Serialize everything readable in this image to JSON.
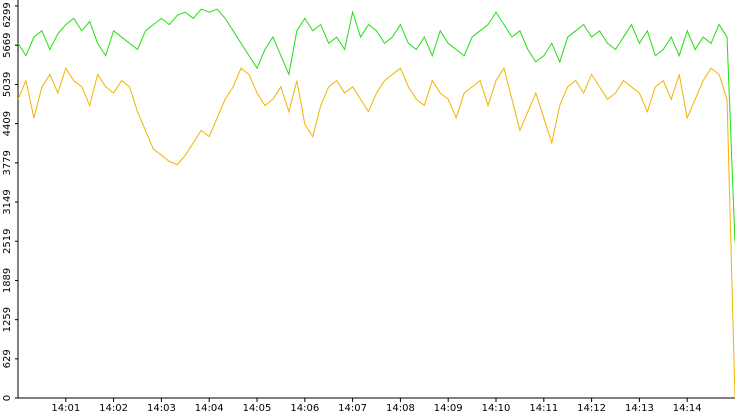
{
  "chart_data": {
    "type": "line",
    "categories": [
      null,
      null,
      null,
      null,
      null,
      null,
      "14:01",
      null,
      null,
      null,
      null,
      null,
      "14:02",
      null,
      null,
      null,
      null,
      null,
      "14:03",
      null,
      null,
      null,
      null,
      null,
      "14:04",
      null,
      null,
      null,
      null,
      null,
      "14:05",
      null,
      null,
      null,
      null,
      null,
      "14:06",
      null,
      null,
      null,
      null,
      null,
      "14:07",
      null,
      null,
      null,
      null,
      null,
      "14:08",
      null,
      null,
      null,
      null,
      null,
      "14:09",
      null,
      null,
      null,
      null,
      null,
      "14:10",
      null,
      null,
      null,
      null,
      null,
      "14:11",
      null,
      null,
      null,
      null,
      null,
      "14:12",
      null,
      null,
      null,
      null,
      null,
      "14:13",
      null,
      null,
      null,
      null,
      null,
      "14:14",
      null,
      null,
      null,
      null,
      null,
      null
    ],
    "series": [
      {
        "color": "#22dd11",
        "values": [
          5700,
          5500,
          5800,
          5900,
          5600,
          5850,
          6000,
          6100,
          5900,
          6050,
          5700,
          5500,
          5900,
          5800,
          5700,
          5600,
          5900,
          6000,
          6100,
          6000,
          6150,
          6200,
          6100,
          6250,
          6200,
          6250,
          6100,
          5900,
          5700,
          5500,
          5300,
          5600,
          5800,
          5500,
          5200,
          5900,
          6100,
          5900,
          6000,
          5700,
          5800,
          5600,
          6200,
          5800,
          6000,
          5900,
          5700,
          5800,
          6000,
          5700,
          5600,
          5800,
          5500,
          5900,
          5700,
          5600,
          5500,
          5800,
          5900,
          6000,
          6200,
          6000,
          5800,
          5900,
          5600,
          5400,
          5500,
          5700,
          5400,
          5800,
          5900,
          6000,
          5800,
          5900,
          5700,
          5600,
          5800,
          6000,
          5700,
          5900,
          5500,
          5600,
          5800,
          5500,
          5900,
          5600,
          5800,
          5700,
          6000,
          5800,
          2500
        ]
      },
      {
        "color": "#f0b400",
        "values": [
          4800,
          5100,
          4500,
          5000,
          5200,
          4900,
          5300,
          5100,
          5000,
          4700,
          5200,
          5000,
          4900,
          5100,
          5000,
          4600,
          4300,
          4000,
          3900,
          3800,
          3750,
          3900,
          4100,
          4300,
          4200,
          4500,
          4800,
          5000,
          5300,
          5200,
          4900,
          4700,
          4800,
          5000,
          4600,
          5100,
          4400,
          4200,
          4700,
          5000,
          5100,
          4900,
          5000,
          4800,
          4600,
          4900,
          5100,
          5200,
          5300,
          5000,
          4800,
          4700,
          5100,
          4900,
          4800,
          4500,
          4900,
          5000,
          5100,
          4700,
          5100,
          5300,
          4800,
          4300,
          4600,
          4900,
          4500,
          4100,
          4700,
          5000,
          5100,
          4900,
          5200,
          5000,
          4800,
          4900,
          5100,
          5000,
          4900,
          4600,
          5000,
          5100,
          4800,
          5200,
          4500,
          4800,
          5100,
          5300,
          5200,
          4800,
          0
        ]
      }
    ],
    "ylim": [
      0,
      6299
    ],
    "yticks": [
      0,
      629,
      1259,
      1889,
      2519,
      3149,
      3779,
      4409,
      5039,
      5669,
      6299
    ]
  }
}
